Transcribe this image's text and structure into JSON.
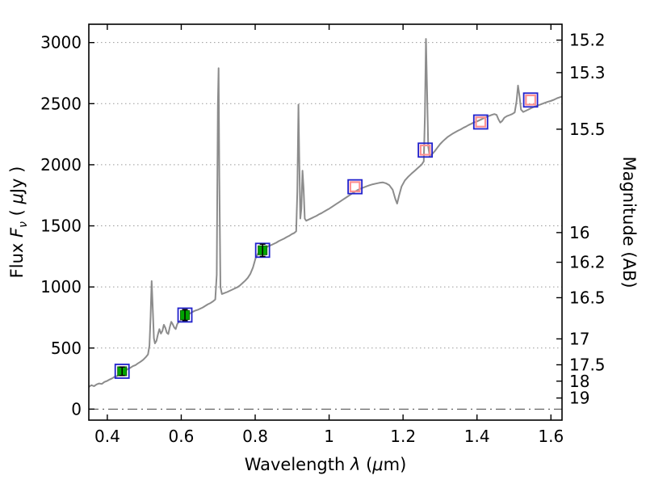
{
  "figure": {
    "background": "#ffffff"
  },
  "chart_data": {
    "type": "line",
    "title": "",
    "xlabel": "Wavelength λ (μm)",
    "ylabel": "Flux Fν ( μJy )",
    "ylabel_right": "Magnitude (AB)",
    "xlabel_parts": [
      {
        "text": "Wavelength  ",
        "italic": false
      },
      {
        "text": "λ",
        "italic": true
      },
      {
        "text": "  (",
        "italic": false
      },
      {
        "text": "μ",
        "italic": true
      },
      {
        "text": "m)",
        "italic": false
      }
    ],
    "ylabel_left_parts": [
      {
        "text": "Flux  ",
        "italic": false
      },
      {
        "text": "F",
        "italic": true
      },
      {
        "text": "ν",
        "italic": true,
        "sub": true
      },
      {
        "text": "  ( ",
        "italic": false
      },
      {
        "text": "μ",
        "italic": true
      },
      {
        "text": "Jy )",
        "italic": false
      }
    ],
    "xlim": [
      0.35,
      1.63
    ],
    "ylim": [
      -90,
      3150
    ],
    "x_ticks": [
      {
        "value": 0.4,
        "label": "0.4"
      },
      {
        "value": 0.6,
        "label": "0.6"
      },
      {
        "value": 0.8,
        "label": "0.8"
      },
      {
        "value": 1.0,
        "label": "1"
      },
      {
        "value": 1.2,
        "label": "1.2"
      },
      {
        "value": 1.4,
        "label": "1.4"
      },
      {
        "value": 1.6,
        "label": "1.6"
      }
    ],
    "y_ticks_left": [
      {
        "value": 0,
        "label": "0"
      },
      {
        "value": 500,
        "label": "500"
      },
      {
        "value": 1000,
        "label": "1000"
      },
      {
        "value": 1500,
        "label": "1500"
      },
      {
        "value": 2000,
        "label": "2000"
      },
      {
        "value": 2500,
        "label": "2500"
      },
      {
        "value": 3000,
        "label": "3000"
      }
    ],
    "y_ticks_right": [
      {
        "label": "15.2",
        "flux": 3020
      },
      {
        "label": "15.3",
        "flux": 2754
      },
      {
        "label": "15.5",
        "flux": 2291
      },
      {
        "label": "16",
        "flux": 1445
      },
      {
        "label": "16.2",
        "flux": 1202
      },
      {
        "label": "16.5",
        "flux": 912
      },
      {
        "label": "17",
        "flux": 575
      },
      {
        "label": "17.5",
        "flux": 363
      },
      {
        "label": "18",
        "flux": 229
      },
      {
        "label": "19",
        "flux": 91
      }
    ],
    "grid": {
      "horizontal_dotted": true,
      "zero_line_dashdot": true,
      "legend": "none"
    },
    "colors": {
      "spectrum": "#8c8c8c",
      "box": "#2121cc",
      "observed_fill": "#00a400",
      "observed_edge": "#006400",
      "model": "#ff9191",
      "errorbar": "#000000",
      "frame": "#000000",
      "grid": "#9a9a9a",
      "zero_line": "#444444"
    },
    "series": [
      {
        "name": "spectrum",
        "type": "line",
        "points": [
          [
            0.35,
            182
          ],
          [
            0.357,
            196
          ],
          [
            0.364,
            188
          ],
          [
            0.371,
            202
          ],
          [
            0.378,
            210
          ],
          [
            0.385,
            206
          ],
          [
            0.392,
            222
          ],
          [
            0.399,
            230
          ],
          [
            0.406,
            242
          ],
          [
            0.413,
            252
          ],
          [
            0.42,
            265
          ],
          [
            0.427,
            272
          ],
          [
            0.434,
            288
          ],
          [
            0.441,
            305
          ],
          [
            0.448,
            312
          ],
          [
            0.455,
            328
          ],
          [
            0.462,
            338
          ],
          [
            0.469,
            352
          ],
          [
            0.476,
            360
          ],
          [
            0.483,
            375
          ],
          [
            0.49,
            388
          ],
          [
            0.497,
            404
          ],
          [
            0.504,
            425
          ],
          [
            0.51,
            448
          ],
          [
            0.514,
            520
          ],
          [
            0.517,
            760
          ],
          [
            0.52,
            1048
          ],
          [
            0.523,
            820
          ],
          [
            0.526,
            580
          ],
          [
            0.529,
            538
          ],
          [
            0.533,
            560
          ],
          [
            0.537,
            612
          ],
          [
            0.541,
            655
          ],
          [
            0.545,
            618
          ],
          [
            0.549,
            640
          ],
          [
            0.553,
            690
          ],
          [
            0.557,
            665
          ],
          [
            0.561,
            625
          ],
          [
            0.565,
            615
          ],
          [
            0.569,
            672
          ],
          [
            0.573,
            715
          ],
          [
            0.577,
            695
          ],
          [
            0.581,
            668
          ],
          [
            0.585,
            655
          ],
          [
            0.589,
            695
          ],
          [
            0.593,
            712
          ],
          [
            0.597,
            722
          ],
          [
            0.602,
            738
          ],
          [
            0.609,
            758
          ],
          [
            0.616,
            772
          ],
          [
            0.623,
            782
          ],
          [
            0.63,
            795
          ],
          [
            0.637,
            805
          ],
          [
            0.644,
            812
          ],
          [
            0.651,
            822
          ],
          [
            0.658,
            832
          ],
          [
            0.665,
            845
          ],
          [
            0.672,
            858
          ],
          [
            0.679,
            868
          ],
          [
            0.686,
            882
          ],
          [
            0.692,
            898
          ],
          [
            0.696,
            1100
          ],
          [
            0.699,
            2480
          ],
          [
            0.701,
            2790
          ],
          [
            0.703,
            1900
          ],
          [
            0.706,
            1000
          ],
          [
            0.71,
            942
          ],
          [
            0.717,
            950
          ],
          [
            0.724,
            958
          ],
          [
            0.731,
            968
          ],
          [
            0.738,
            978
          ],
          [
            0.745,
            988
          ],
          [
            0.752,
            998
          ],
          [
            0.759,
            1012
          ],
          [
            0.766,
            1032
          ],
          [
            0.773,
            1052
          ],
          [
            0.78,
            1075
          ],
          [
            0.787,
            1108
          ],
          [
            0.794,
            1160
          ],
          [
            0.801,
            1235
          ],
          [
            0.808,
            1275
          ],
          [
            0.815,
            1298
          ],
          [
            0.822,
            1312
          ],
          [
            0.829,
            1322
          ],
          [
            0.836,
            1335
          ],
          [
            0.843,
            1342
          ],
          [
            0.85,
            1352
          ],
          [
            0.857,
            1362
          ],
          [
            0.864,
            1375
          ],
          [
            0.871,
            1385
          ],
          [
            0.878,
            1395
          ],
          [
            0.885,
            1408
          ],
          [
            0.892,
            1418
          ],
          [
            0.899,
            1432
          ],
          [
            0.906,
            1442
          ],
          [
            0.911,
            1455
          ],
          [
            0.914,
            1780
          ],
          [
            0.917,
            2492
          ],
          [
            0.919,
            2100
          ],
          [
            0.922,
            1560
          ],
          [
            0.925,
            1640
          ],
          [
            0.928,
            1952
          ],
          [
            0.931,
            1800
          ],
          [
            0.934,
            1560
          ],
          [
            0.938,
            1542
          ],
          [
            0.945,
            1552
          ],
          [
            0.952,
            1562
          ],
          [
            0.959,
            1572
          ],
          [
            0.966,
            1582
          ],
          [
            0.973,
            1595
          ],
          [
            0.98,
            1605
          ],
          [
            0.987,
            1618
          ],
          [
            0.994,
            1630
          ],
          [
            1.001,
            1642
          ],
          [
            1.01,
            1660
          ],
          [
            1.019,
            1678
          ],
          [
            1.028,
            1696
          ],
          [
            1.037,
            1714
          ],
          [
            1.046,
            1732
          ],
          [
            1.055,
            1750
          ],
          [
            1.064,
            1768
          ],
          [
            1.073,
            1786
          ],
          [
            1.082,
            1800
          ],
          [
            1.091,
            1812
          ],
          [
            1.1,
            1822
          ],
          [
            1.109,
            1832
          ],
          [
            1.118,
            1840
          ],
          [
            1.127,
            1846
          ],
          [
            1.136,
            1852
          ],
          [
            1.145,
            1856
          ],
          [
            1.154,
            1848
          ],
          [
            1.163,
            1832
          ],
          [
            1.172,
            1795
          ],
          [
            1.179,
            1722
          ],
          [
            1.184,
            1682
          ],
          [
            1.189,
            1745
          ],
          [
            1.196,
            1822
          ],
          [
            1.205,
            1872
          ],
          [
            1.214,
            1902
          ],
          [
            1.223,
            1928
          ],
          [
            1.232,
            1952
          ],
          [
            1.241,
            1976
          ],
          [
            1.25,
            2000
          ],
          [
            1.256,
            2028
          ],
          [
            1.259,
            2400
          ],
          [
            1.262,
            3030
          ],
          [
            1.265,
            2600
          ],
          [
            1.268,
            2150
          ],
          [
            1.272,
            2072
          ],
          [
            1.279,
            2088
          ],
          [
            1.286,
            2112
          ],
          [
            1.293,
            2140
          ],
          [
            1.3,
            2168
          ],
          [
            1.307,
            2190
          ],
          [
            1.314,
            2210
          ],
          [
            1.321,
            2228
          ],
          [
            1.328,
            2242
          ],
          [
            1.335,
            2256
          ],
          [
            1.342,
            2268
          ],
          [
            1.349,
            2280
          ],
          [
            1.356,
            2290
          ],
          [
            1.363,
            2302
          ],
          [
            1.37,
            2312
          ],
          [
            1.377,
            2325
          ],
          [
            1.384,
            2335
          ],
          [
            1.391,
            2345
          ],
          [
            1.398,
            2352
          ],
          [
            1.405,
            2362
          ],
          [
            1.412,
            2372
          ],
          [
            1.419,
            2382
          ],
          [
            1.426,
            2392
          ],
          [
            1.433,
            2400
          ],
          [
            1.44,
            2408
          ],
          [
            1.447,
            2415
          ],
          [
            1.453,
            2408
          ],
          [
            1.458,
            2372
          ],
          [
            1.463,
            2345
          ],
          [
            1.468,
            2358
          ],
          [
            1.474,
            2385
          ],
          [
            1.481,
            2398
          ],
          [
            1.488,
            2406
          ],
          [
            1.495,
            2415
          ],
          [
            1.502,
            2428
          ],
          [
            1.507,
            2520
          ],
          [
            1.511,
            2648
          ],
          [
            1.515,
            2560
          ],
          [
            1.519,
            2452
          ],
          [
            1.525,
            2432
          ],
          [
            1.532,
            2442
          ],
          [
            1.539,
            2452
          ],
          [
            1.546,
            2462
          ],
          [
            1.553,
            2472
          ],
          [
            1.56,
            2480
          ],
          [
            1.567,
            2488
          ],
          [
            1.574,
            2496
          ],
          [
            1.581,
            2504
          ],
          [
            1.59,
            2514
          ],
          [
            1.599,
            2522
          ],
          [
            1.608,
            2532
          ],
          [
            1.617,
            2545
          ],
          [
            1.626,
            2554
          ],
          [
            1.63,
            2558
          ]
        ]
      },
      {
        "name": "observed-photometry",
        "type": "scatter",
        "marker": "filled-square-with-errorbar",
        "x": [
          0.44,
          0.61,
          0.82
        ],
        "y": [
          310,
          770,
          1300
        ],
        "yerr": [
          35,
          45,
          50
        ]
      },
      {
        "name": "model-photometry",
        "type": "scatter",
        "marker": "open-square-pink",
        "x": [
          1.07,
          1.26,
          1.41,
          1.545
        ],
        "y": [
          1820,
          2120,
          2350,
          2530
        ]
      },
      {
        "name": "photometry-boxes",
        "type": "scatter",
        "marker": "open-square-blue",
        "x": [
          0.44,
          0.61,
          0.82,
          1.07,
          1.26,
          1.41,
          1.545
        ],
        "y": [
          310,
          770,
          1300,
          1820,
          2120,
          2350,
          2530
        ]
      }
    ]
  }
}
